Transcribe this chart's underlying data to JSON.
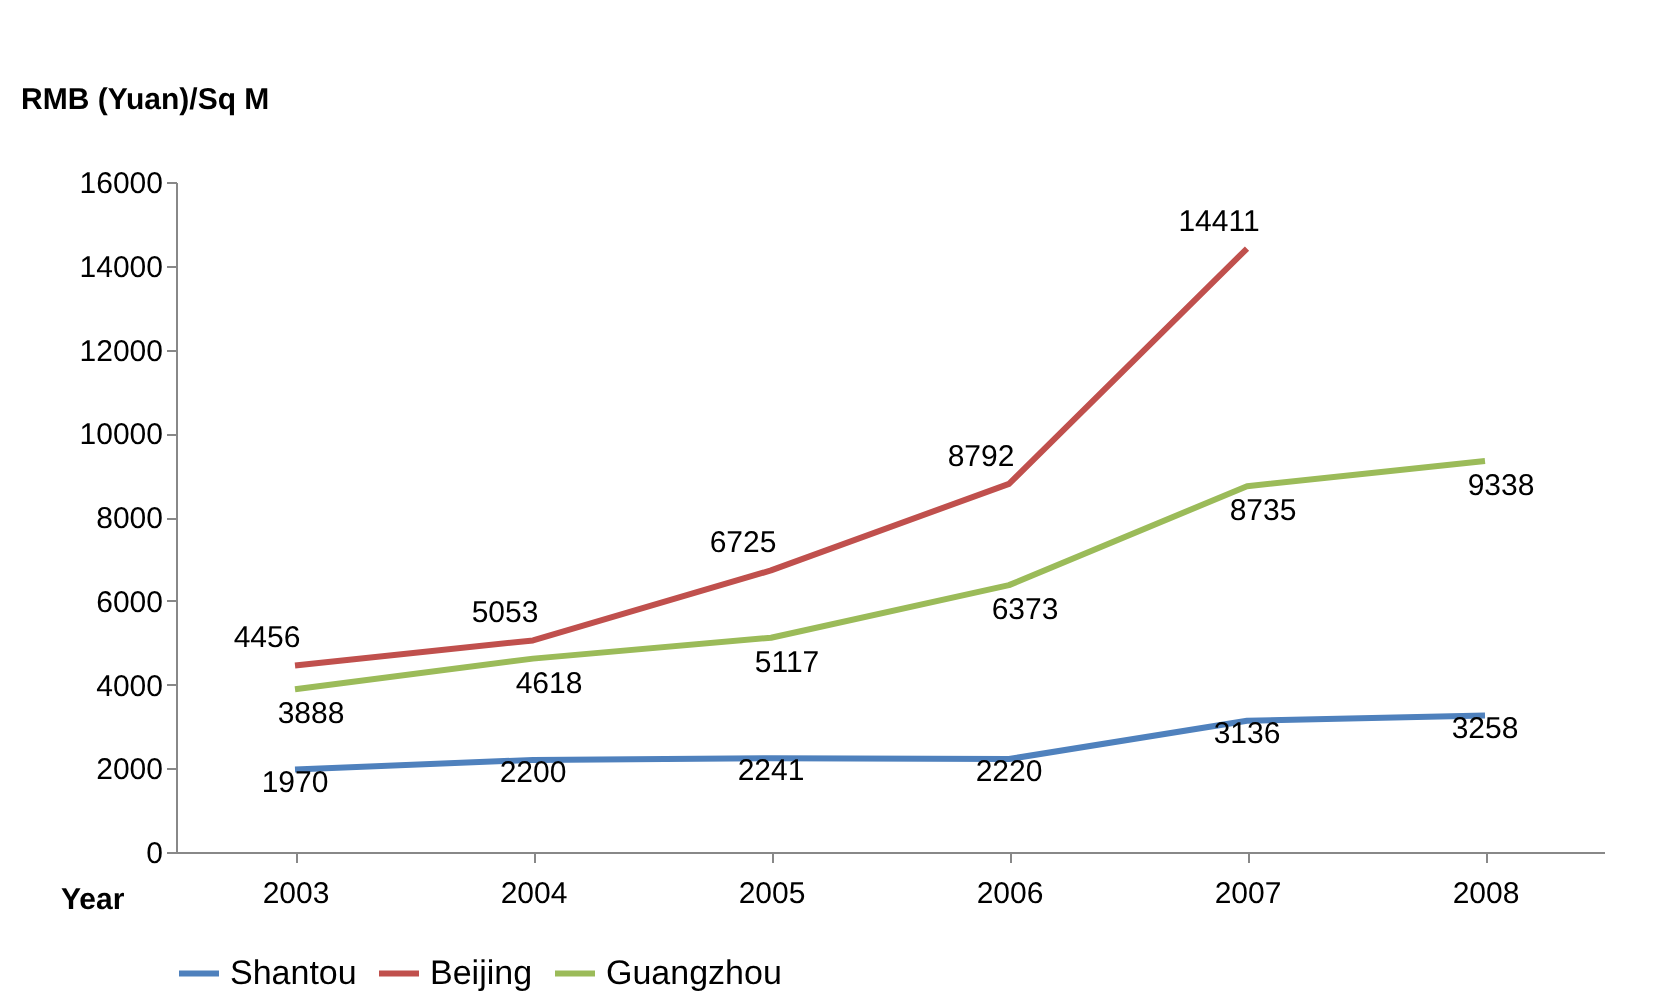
{
  "chart_data": {
    "type": "line",
    "xlabel": "Year",
    "ylabel": "RMB (Yuan)/Sq M",
    "categories": [
      "2003",
      "2004",
      "2005",
      "2006",
      "2007",
      "2008"
    ],
    "series": [
      {
        "name": "Shantou",
        "color": "#4f81bd",
        "values": [
          1970,
          2200,
          2241,
          2220,
          3136,
          3258
        ]
      },
      {
        "name": "Beijing",
        "color": "#c0504d",
        "values": [
          4456,
          5053,
          6725,
          8792,
          14411,
          null
        ]
      },
      {
        "name": "Guangzhou",
        "color": "#9bbb59",
        "values": [
          3888,
          4618,
          5117,
          6373,
          8735,
          9338
        ]
      }
    ],
    "ylim": [
      0,
      16000
    ],
    "yticks": [
      0,
      2000,
      4000,
      6000,
      8000,
      10000,
      12000,
      14000,
      16000
    ],
    "grid": false,
    "legend": "bottom",
    "data_labels": true,
    "marker": "none",
    "line_style": "solid"
  }
}
